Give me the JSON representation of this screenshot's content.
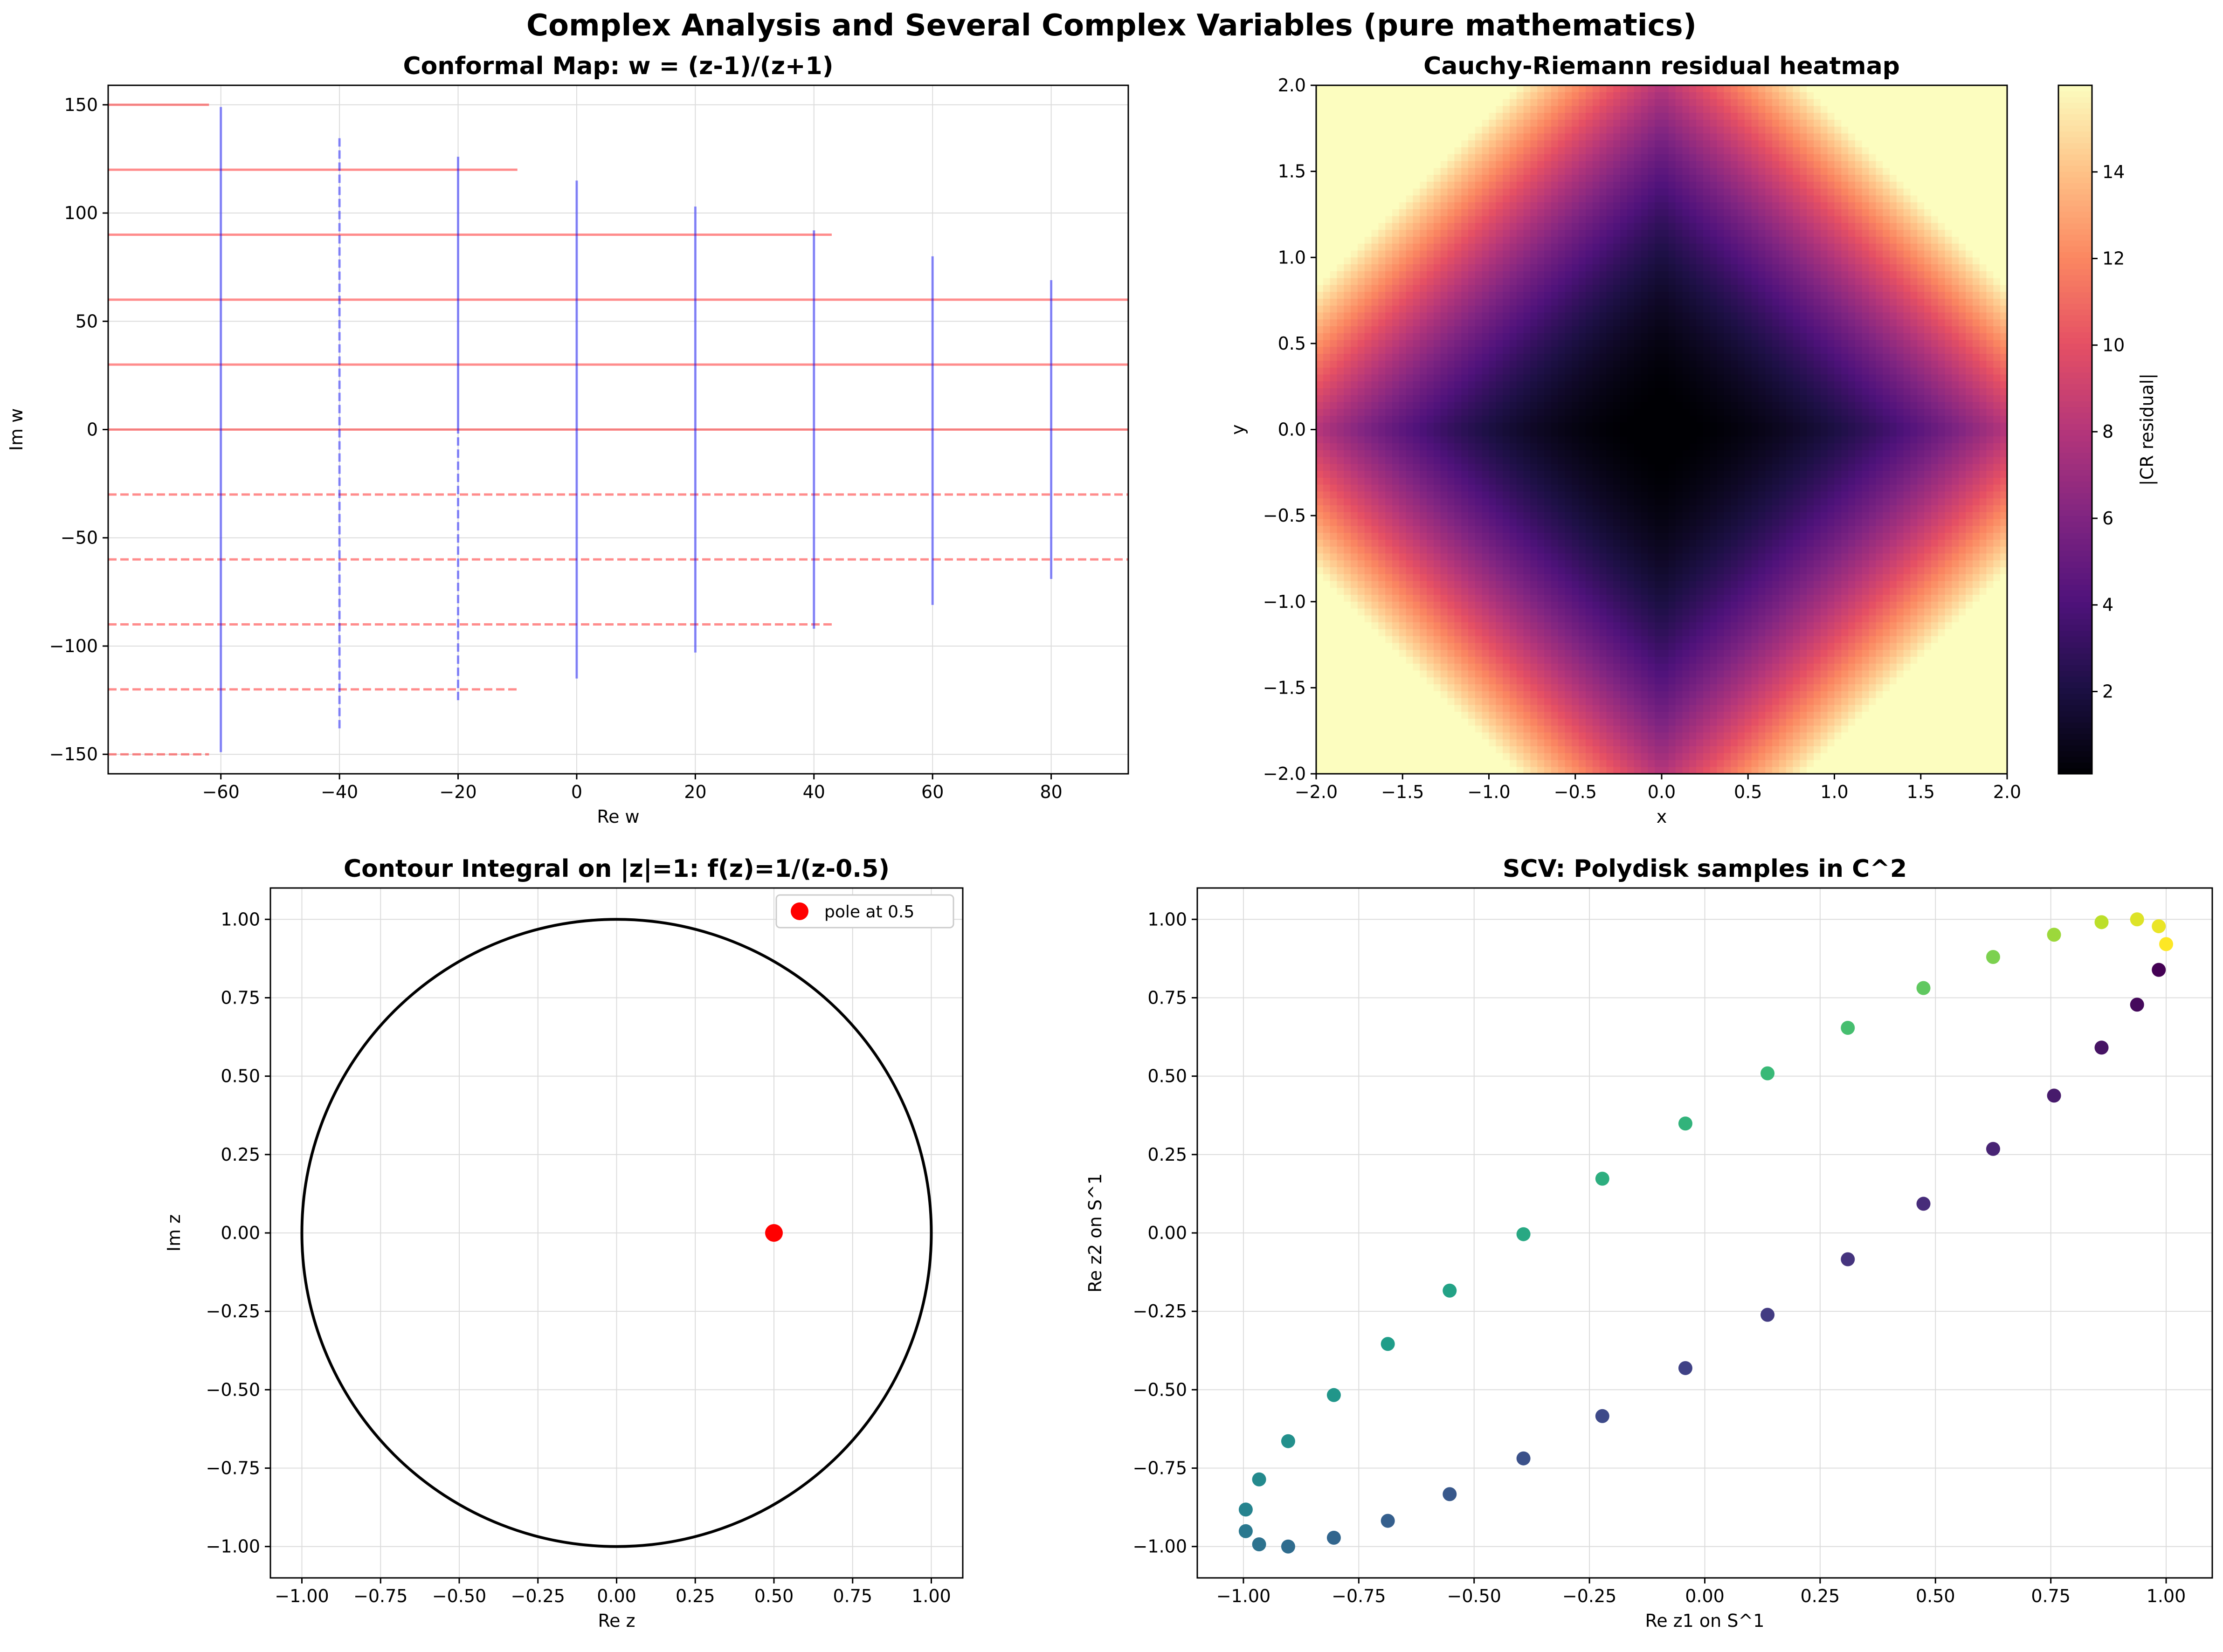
{
  "suptitle": "Complex Analysis and Several Complex Variables (pure mathematics)",
  "chart_data": [
    {
      "id": "conformal",
      "type": "line",
      "title": "Conformal Map: w = (z-1)/(z+1)",
      "xlabel": "Re w",
      "ylabel": "Im w",
      "xlim": [
        -79,
        93
      ],
      "ylim": [
        -159,
        159
      ],
      "xticks": [
        -60,
        -40,
        -20,
        0,
        20,
        40,
        60,
        80
      ],
      "yticks": [
        -150,
        -100,
        -50,
        0,
        50,
        100,
        150
      ],
      "grid": true,
      "colors": {
        "horizontal": "#ff0000",
        "vertical": "#0000ff"
      },
      "horizontal_lines": [
        {
          "y": 150,
          "x": [
            -79,
            -62
          ],
          "style": "solid"
        },
        {
          "y": 120,
          "x": [
            -79,
            -10
          ],
          "style": "solid"
        },
        {
          "y": 90,
          "x": [
            -79,
            43
          ],
          "style": "solid"
        },
        {
          "y": 60,
          "x": [
            -79,
            93
          ],
          "style": "solid"
        },
        {
          "y": 30,
          "x": [
            -79,
            93
          ],
          "style": "solid"
        },
        {
          "y": 0,
          "x": [
            -79,
            93
          ],
          "style": "solid"
        },
        {
          "y": -30,
          "x": [
            -79,
            93
          ],
          "style": "dashed"
        },
        {
          "y": -60,
          "x": [
            -79,
            93
          ],
          "style": "dashed"
        },
        {
          "y": -90,
          "x": [
            -79,
            43
          ],
          "style": "dashed"
        },
        {
          "y": -120,
          "x": [
            -79,
            -10
          ],
          "style": "dashed"
        },
        {
          "y": -150,
          "x": [
            -79,
            -62
          ],
          "style": "dashed"
        }
      ],
      "vertical_lines": [
        {
          "x": -60,
          "y": [
            -149,
            149
          ],
          "style": "solid"
        },
        {
          "x": -40,
          "y": [
            -138,
            136
          ],
          "style": "dashed"
        },
        {
          "x": -20,
          "y": [
            -125,
            126
          ],
          "style": "mixed"
        },
        {
          "x": 0,
          "y": [
            -115,
            115
          ],
          "style": "solid"
        },
        {
          "x": 20,
          "y": [
            -103,
            103
          ],
          "style": "solid"
        },
        {
          "x": 40,
          "y": [
            -92,
            92
          ],
          "style": "solid"
        },
        {
          "x": 60,
          "y": [
            -81,
            80
          ],
          "style": "solid"
        },
        {
          "x": 80,
          "y": [
            -69,
            69
          ],
          "style": "solid"
        }
      ]
    },
    {
      "id": "cr_heatmap",
      "type": "heatmap",
      "title": "Cauchy-Riemann residual heatmap",
      "xlabel": "x",
      "ylabel": "y",
      "xlim": [
        -2,
        2
      ],
      "ylim": [
        -2,
        2
      ],
      "xticks": [
        -2.0,
        -1.5,
        -1.0,
        -0.5,
        0.0,
        0.5,
        1.0,
        1.5,
        2.0
      ],
      "yticks": [
        -2.0,
        -1.5,
        -1.0,
        -0.5,
        0.0,
        0.5,
        1.0,
        1.5,
        2.0
      ],
      "colormap": "magma",
      "colorbar_label": "|CR residual|",
      "colorbar_ticks": [
        2,
        4,
        6,
        8,
        10,
        12,
        14
      ],
      "value_range": [
        0.1,
        16
      ],
      "formula": "2*(x^2 + y^2) + 4*|x*y|",
      "magma_stops": [
        "#000004",
        "#1c1044",
        "#4f127b",
        "#812581",
        "#b5367a",
        "#e55064",
        "#fb8761",
        "#fec287",
        "#fcfdbf"
      ]
    },
    {
      "id": "contour",
      "type": "line",
      "title": "Contour Integral on |z|=1: f(z)=1/(z-0.5)",
      "xlabel": "Re z",
      "ylabel": "Im z",
      "xlim": [
        -1.1,
        1.1
      ],
      "ylim": [
        -1.1,
        1.1
      ],
      "xticks": [
        -1.0,
        -0.75,
        -0.5,
        -0.25,
        0.0,
        0.25,
        0.5,
        0.75,
        1.0
      ],
      "yticks": [
        -1.0,
        -0.75,
        -0.5,
        -0.25,
        0.0,
        0.25,
        0.5,
        0.75,
        1.0
      ],
      "grid": true,
      "circle": {
        "cx": 0,
        "cy": 0,
        "r": 1,
        "color": "#000000"
      },
      "pole": {
        "x": 0.5,
        "y": 0,
        "color": "#ff0000",
        "label": "pole at 0.5"
      },
      "legend_position": "upper right"
    },
    {
      "id": "polydisk",
      "type": "scatter",
      "title": "SCV: Polydisk samples in C^2",
      "xlabel": "Re z1 on S^1",
      "ylabel": "Re z2 on S^1",
      "xlim": [
        -1.1,
        1.1
      ],
      "ylim": [
        -1.1,
        1.1
      ],
      "xticks": [
        -1.0,
        -0.75,
        -0.5,
        -0.25,
        0.0,
        0.25,
        0.5,
        0.75,
        1.0
      ],
      "yticks": [
        -1.0,
        -0.75,
        -0.5,
        -0.25,
        0.0,
        0.25,
        0.5,
        0.75,
        1.0
      ],
      "grid": true,
      "colormap": "viridis",
      "viridis_stops": [
        "#440154",
        "#482878",
        "#3e4989",
        "#31688e",
        "#26828e",
        "#1f9e89",
        "#35b779",
        "#6ece58",
        "#b5de2b",
        "#fde725"
      ],
      "points": [
        {
          "x": 0.984,
          "y": 0.839,
          "c": 0.0
        },
        {
          "x": 0.937,
          "y": 0.728,
          "c": 0.025
        },
        {
          "x": 0.86,
          "y": 0.591,
          "c": 0.05
        },
        {
          "x": 0.757,
          "y": 0.438,
          "c": 0.075
        },
        {
          "x": 0.625,
          "y": 0.268,
          "c": 0.1
        },
        {
          "x": 0.474,
          "y": 0.093,
          "c": 0.125
        },
        {
          "x": 0.31,
          "y": -0.084,
          "c": 0.15
        },
        {
          "x": 0.136,
          "y": -0.261,
          "c": 0.175
        },
        {
          "x": -0.042,
          "y": -0.431,
          "c": 0.2
        },
        {
          "x": -0.222,
          "y": -0.584,
          "c": 0.225
        },
        {
          "x": -0.393,
          "y": -0.719,
          "c": 0.25
        },
        {
          "x": -0.553,
          "y": -0.833,
          "c": 0.275
        },
        {
          "x": -0.687,
          "y": -0.918,
          "c": 0.3
        },
        {
          "x": -0.804,
          "y": -0.972,
          "c": 0.325
        },
        {
          "x": -0.903,
          "y": -1.0,
          "c": 0.35
        },
        {
          "x": -0.966,
          "y": -0.993,
          "c": 0.375
        },
        {
          "x": -0.995,
          "y": -0.951,
          "c": 0.4
        },
        {
          "x": -0.995,
          "y": -0.882,
          "c": 0.45
        },
        {
          "x": -0.966,
          "y": -0.786,
          "c": 0.475
        },
        {
          "x": -0.903,
          "y": -0.664,
          "c": 0.5
        },
        {
          "x": -0.804,
          "y": -0.517,
          "c": 0.525
        },
        {
          "x": -0.687,
          "y": -0.354,
          "c": 0.55
        },
        {
          "x": -0.553,
          "y": -0.184,
          "c": 0.575
        },
        {
          "x": -0.393,
          "y": -0.004,
          "c": 0.6
        },
        {
          "x": -0.222,
          "y": 0.173,
          "c": 0.625
        },
        {
          "x": -0.042,
          "y": 0.349,
          "c": 0.65
        },
        {
          "x": 0.136,
          "y": 0.509,
          "c": 0.675
        },
        {
          "x": 0.31,
          "y": 0.654,
          "c": 0.7
        },
        {
          "x": 0.474,
          "y": 0.781,
          "c": 0.75
        },
        {
          "x": 0.625,
          "y": 0.88,
          "c": 0.8
        },
        {
          "x": 0.757,
          "y": 0.951,
          "c": 0.85
        },
        {
          "x": 0.86,
          "y": 0.991,
          "c": 0.9
        },
        {
          "x": 0.937,
          "y": 1.0,
          "c": 0.95
        },
        {
          "x": 0.984,
          "y": 0.978,
          "c": 0.97
        },
        {
          "x": 1.0,
          "y": 0.921,
          "c": 1.0
        }
      ]
    }
  ]
}
